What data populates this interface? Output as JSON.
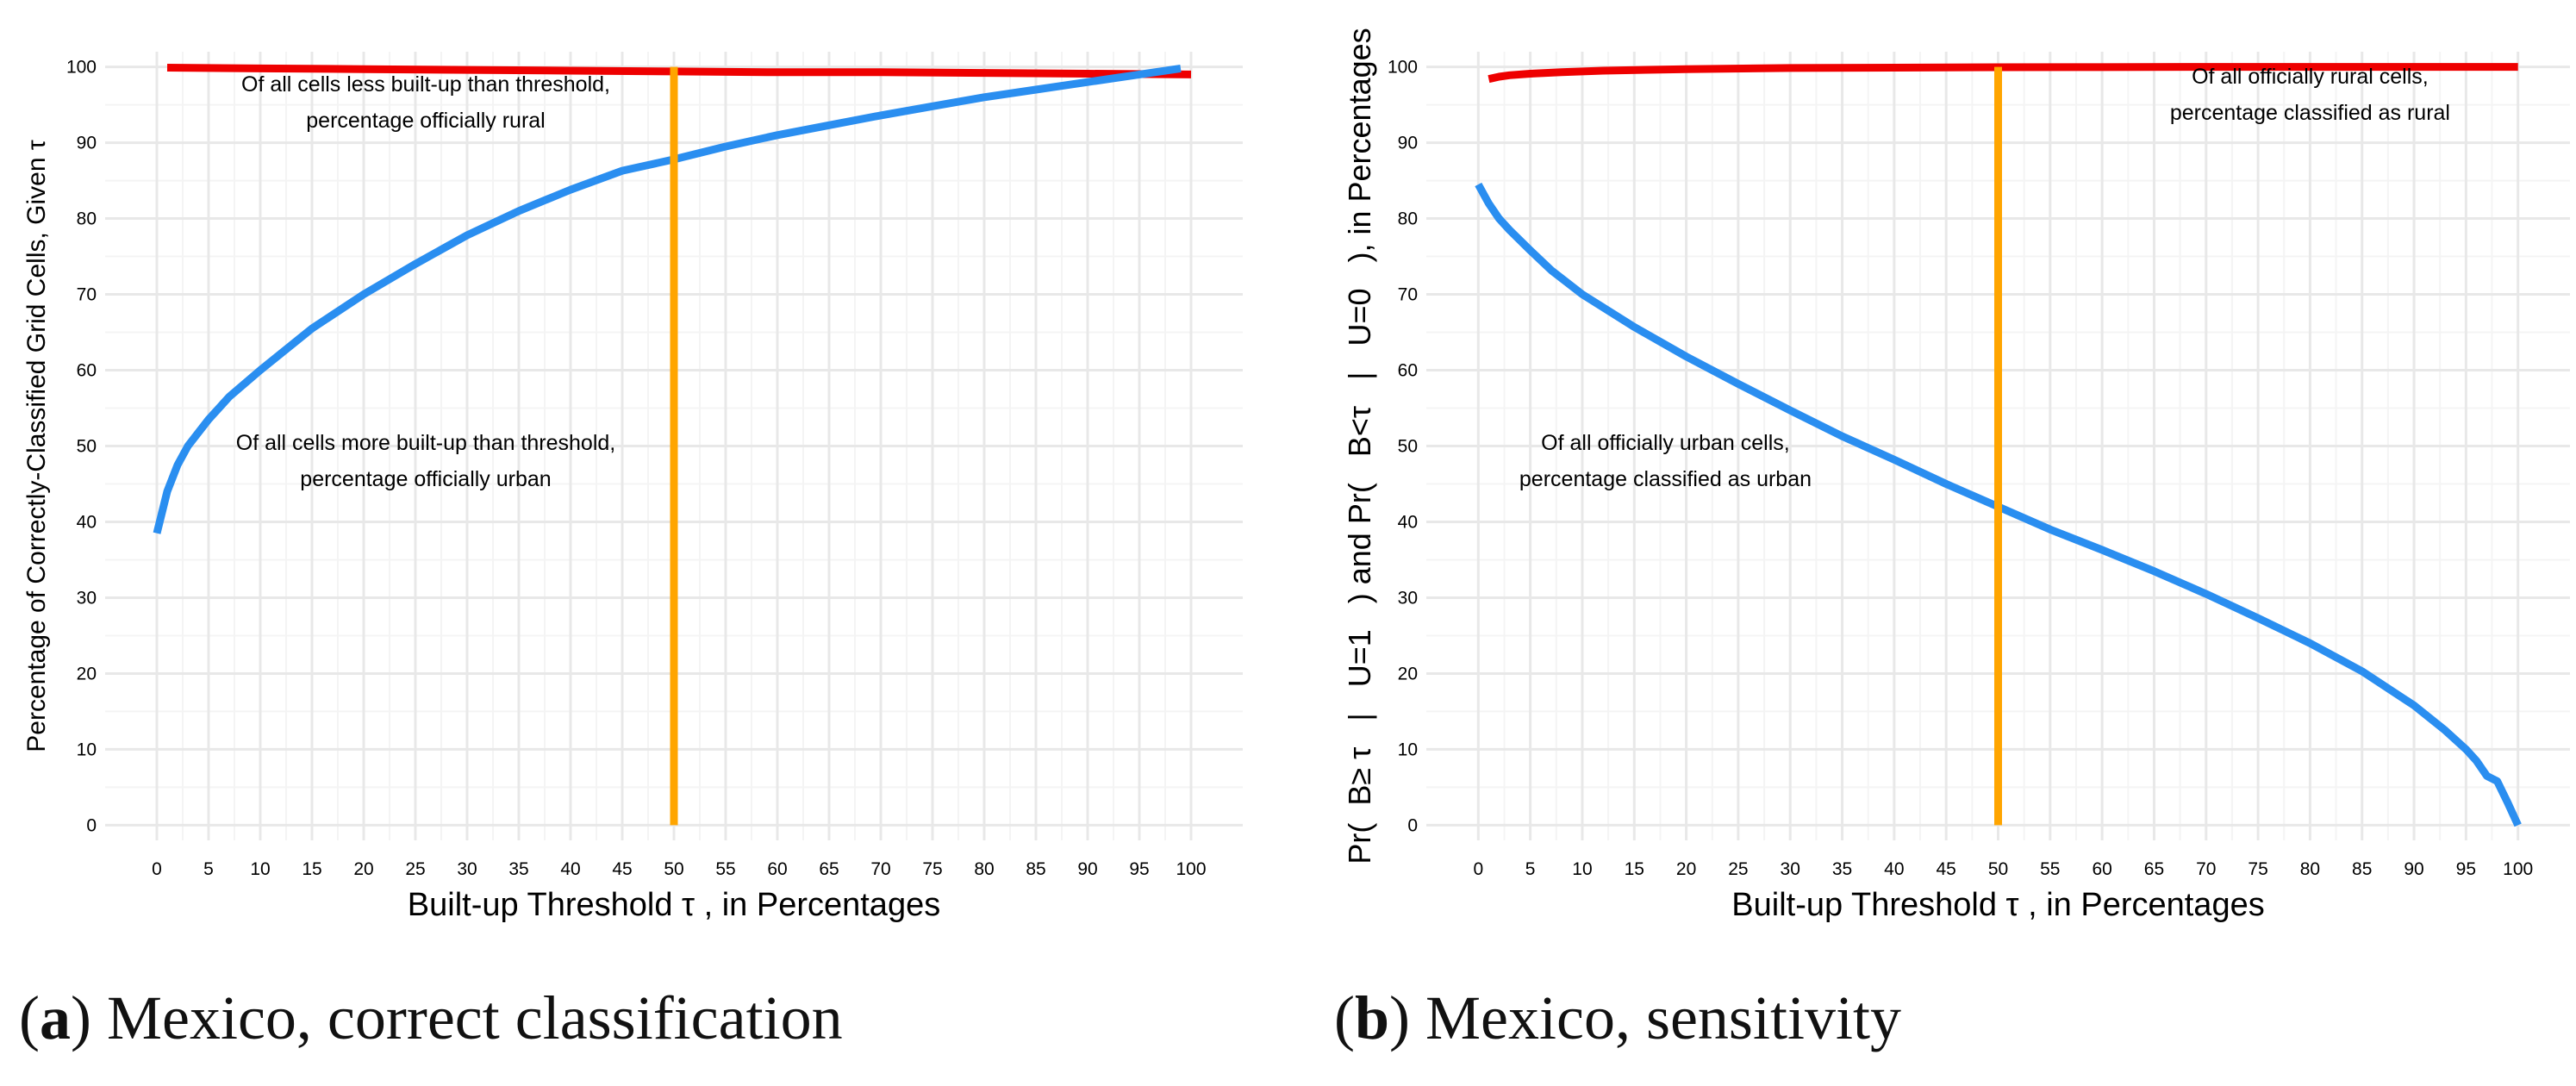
{
  "colors": {
    "red": "#ee0000",
    "blue": "#2a8ef0",
    "orange": "#ffa500",
    "grid_major": "#e8e8e8",
    "grid_minor": "#f4f4f4"
  },
  "captions": [
    {
      "label": "a",
      "text": "Mexico, correct classification"
    },
    {
      "label": "b",
      "text": "Mexico, sensitivity"
    }
  ],
  "chart_data": [
    {
      "type": "line",
      "title": "",
      "xlabel": "Built-up Threshold τ , in Percentages",
      "ylabel": "Percentage of Correctly-Classified Grid Cells, Given τ",
      "xlim": [
        -5,
        105
      ],
      "ylim": [
        -2,
        102
      ],
      "xticks": [
        "0",
        "5",
        "10",
        "15",
        "20",
        "25",
        "30",
        "35",
        "40",
        "45",
        "50",
        "55",
        "60",
        "65",
        "70",
        "75",
        "80",
        "85",
        "90",
        "95",
        "100"
      ],
      "yticks": [
        "0",
        "10",
        "20",
        "30",
        "40",
        "50",
        "60",
        "70",
        "80",
        "90",
        "100"
      ],
      "vline": 50,
      "series": [
        {
          "name": "less built-up, officially rural",
          "color": "red",
          "x": [
            1,
            10,
            20,
            30,
            40,
            50,
            60,
            70,
            80,
            90,
            100
          ],
          "y": [
            99.9,
            99.8,
            99.7,
            99.6,
            99.5,
            99.4,
            99.3,
            99.3,
            99.2,
            99.1,
            99.0
          ]
        },
        {
          "name": "more built-up, officially urban",
          "color": "blue",
          "x": [
            0,
            1,
            2,
            3,
            5,
            7,
            10,
            15,
            20,
            25,
            30,
            35,
            40,
            45,
            50,
            55,
            60,
            65,
            70,
            75,
            80,
            85,
            90,
            95,
            99
          ],
          "y": [
            38.5,
            44,
            47.5,
            50,
            53.5,
            56.5,
            60,
            65.5,
            70,
            74,
            77.8,
            81,
            83.8,
            86.3,
            87.8,
            89.5,
            91,
            92.3,
            93.6,
            94.8,
            96,
            97,
            98,
            99,
            99.8
          ]
        }
      ],
      "annotations": [
        {
          "text": [
            "Of all cells less built-up than threshold,",
            "percentage officially rural"
          ],
          "x": 26,
          "y": 96.8
        },
        {
          "text": [
            "Of all cells more built-up than threshold,",
            "percentage officially urban"
          ],
          "x": 26,
          "y": 49.5
        }
      ]
    },
    {
      "type": "line",
      "title": "",
      "xlabel": "Built-up Threshold τ , in Percentages",
      "ylabel": "Pr(  B≥ τ   |   U=1   ) and Pr(   B<τ   |   U=0   ), in Percentages",
      "xlim": [
        -5,
        105
      ],
      "ylim": [
        -2,
        102
      ],
      "xticks": [
        "0",
        "5",
        "10",
        "15",
        "20",
        "25",
        "30",
        "35",
        "40",
        "45",
        "50",
        "55",
        "60",
        "65",
        "70",
        "75",
        "80",
        "85",
        "90",
        "95",
        "100"
      ],
      "yticks": [
        "0",
        "10",
        "20",
        "30",
        "40",
        "50",
        "60",
        "70",
        "80",
        "90",
        "100"
      ],
      "vline": 50,
      "series": [
        {
          "name": "officially rural, classified rural",
          "color": "red",
          "x": [
            1,
            2,
            3,
            5,
            8,
            12,
            20,
            30,
            40,
            50,
            60,
            70,
            80,
            90,
            100
          ],
          "y": [
            98.4,
            98.7,
            98.9,
            99.1,
            99.3,
            99.5,
            99.7,
            99.85,
            99.9,
            99.95,
            99.97,
            100,
            100,
            100,
            100
          ]
        },
        {
          "name": "officially urban, classified urban",
          "color": "blue",
          "x": [
            0,
            1,
            2,
            3,
            5,
            7,
            10,
            15,
            20,
            25,
            30,
            35,
            40,
            45,
            50,
            55,
            60,
            65,
            70,
            75,
            80,
            85,
            90,
            93,
            95,
            96,
            97,
            98,
            99,
            100
          ],
          "y": [
            84.5,
            82,
            80,
            78.5,
            75.8,
            73.2,
            70,
            65.7,
            61.8,
            58.2,
            54.7,
            51.3,
            48.2,
            45,
            42,
            39,
            36.3,
            33.5,
            30.5,
            27.3,
            24,
            20.3,
            15.8,
            12.5,
            10,
            8.5,
            6.5,
            5.8,
            3,
            0
          ]
        }
      ],
      "annotations": [
        {
          "text": [
            "Of all officially rural cells,",
            "percentage classified as rural"
          ],
          "x": 80,
          "y": 97.8
        },
        {
          "text": [
            "Of all officially urban cells,",
            "percentage classified as urban"
          ],
          "x": 18,
          "y": 49.5
        }
      ]
    }
  ]
}
